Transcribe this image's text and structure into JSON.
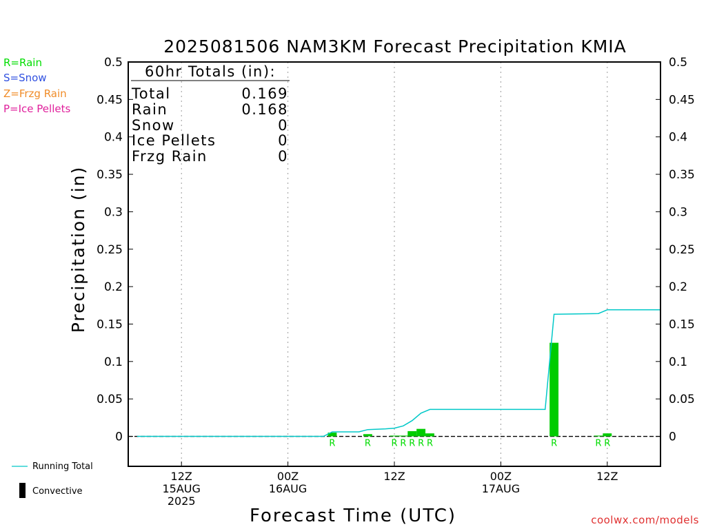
{
  "legend_left": {
    "rain": {
      "label": "R=Rain",
      "color": "#00dd00"
    },
    "snow": {
      "label": "S=Snow",
      "color": "#3050e0"
    },
    "frzg": {
      "label": "Z=Frzg Rain",
      "color": "#f08c28"
    },
    "ice": {
      "label": "P=Ice Pellets",
      "color": "#e0209c"
    }
  },
  "legend_bottom": {
    "running_total": "Running Total",
    "convective": "Convective"
  },
  "credit": "coolwx.com/models",
  "chart_data": {
    "type": "bar",
    "title": "2025081506 NAM3KM Forecast Precipitation KMIA",
    "xlabel": "Forecast Time (UTC)",
    "ylabel": "Precipitation (in)",
    "ylim": [
      -0.04,
      0.5
    ],
    "xlim_hours_since_2025-08-15T00Z": [
      6,
      66
    ],
    "yticks": [
      "0",
      "0.05",
      "0.1",
      "0.15",
      "0.2",
      "0.25",
      "0.3",
      "0.35",
      "0.4",
      "0.45",
      "0.5"
    ],
    "x_tick_labels": [
      {
        "x_valid": "2025-08-15 12Z",
        "lines": [
          "12Z",
          "15AUG",
          "2025"
        ]
      },
      {
        "x_valid": "2025-08-16 00Z",
        "lines": [
          "00Z",
          "16AUG"
        ]
      },
      {
        "x_valid": "2025-08-16 12Z",
        "lines": [
          "12Z"
        ]
      },
      {
        "x_valid": "2025-08-17 00Z",
        "lines": [
          "00Z",
          "17AUG"
        ]
      },
      {
        "x_valid": "2025-08-17 12Z",
        "lines": [
          "12Z"
        ]
      }
    ],
    "grid": "vertical dotted at 12-hourly ticks",
    "totals_box": {
      "header": "60hr Totals (in):",
      "rows": [
        {
          "label": "Total",
          "value": "0.169"
        },
        {
          "label": "Rain",
          "value": "0.168"
        },
        {
          "label": "Snow",
          "value": "0"
        },
        {
          "label": "Ice Pellets",
          "value": "0"
        },
        {
          "label": "Frzg Rain",
          "value": "0"
        }
      ]
    },
    "bars": [
      {
        "x_valid": "2025-08-16 05Z",
        "value": 0.005,
        "ptype": "R"
      },
      {
        "x_valid": "2025-08-16 09Z",
        "value": 0.003,
        "ptype": "R"
      },
      {
        "x_valid": "2025-08-16 12Z",
        "value": 0.001,
        "ptype": "R"
      },
      {
        "x_valid": "2025-08-16 13Z",
        "value": 0.001,
        "ptype": "R"
      },
      {
        "x_valid": "2025-08-16 14Z",
        "value": 0.007,
        "ptype": "R"
      },
      {
        "x_valid": "2025-08-16 15Z",
        "value": 0.01,
        "ptype": "R"
      },
      {
        "x_valid": "2025-08-16 16Z",
        "value": 0.004,
        "ptype": "R"
      },
      {
        "x_valid": "2025-08-17 06Z",
        "value": 0.125,
        "ptype": "R"
      },
      {
        "x_valid": "2025-08-17 11Z",
        "value": 0.001,
        "ptype": "R"
      },
      {
        "x_valid": "2025-08-17 12Z",
        "value": 0.004,
        "ptype": "R"
      }
    ],
    "running_total": [
      {
        "x_valid": "2025-08-15 07Z",
        "value": 0
      },
      {
        "x_valid": "2025-08-16 04Z",
        "value": 0
      },
      {
        "x_valid": "2025-08-16 05Z",
        "value": 0.006
      },
      {
        "x_valid": "2025-08-16 08Z",
        "value": 0.006
      },
      {
        "x_valid": "2025-08-16 09Z",
        "value": 0.009
      },
      {
        "x_valid": "2025-08-16 11Z",
        "value": 0.01
      },
      {
        "x_valid": "2025-08-16 12Z",
        "value": 0.011
      },
      {
        "x_valid": "2025-08-16 13Z",
        "value": 0.014
      },
      {
        "x_valid": "2025-08-16 14Z",
        "value": 0.021
      },
      {
        "x_valid": "2025-08-16 15Z",
        "value": 0.031
      },
      {
        "x_valid": "2025-08-16 16Z",
        "value": 0.036
      },
      {
        "x_valid": "2025-08-17 05Z",
        "value": 0.036
      },
      {
        "x_valid": "2025-08-17 06Z",
        "value": 0.163
      },
      {
        "x_valid": "2025-08-17 11Z",
        "value": 0.164
      },
      {
        "x_valid": "2025-08-17 12Z",
        "value": 0.169
      },
      {
        "x_valid": "2025-08-17 18Z",
        "value": 0.169
      }
    ],
    "colors": {
      "rain_bar": "#00cc00",
      "running_total": "#00c8c8",
      "convective": "#000000",
      "grid": "#999999",
      "frame": "#000000"
    }
  }
}
